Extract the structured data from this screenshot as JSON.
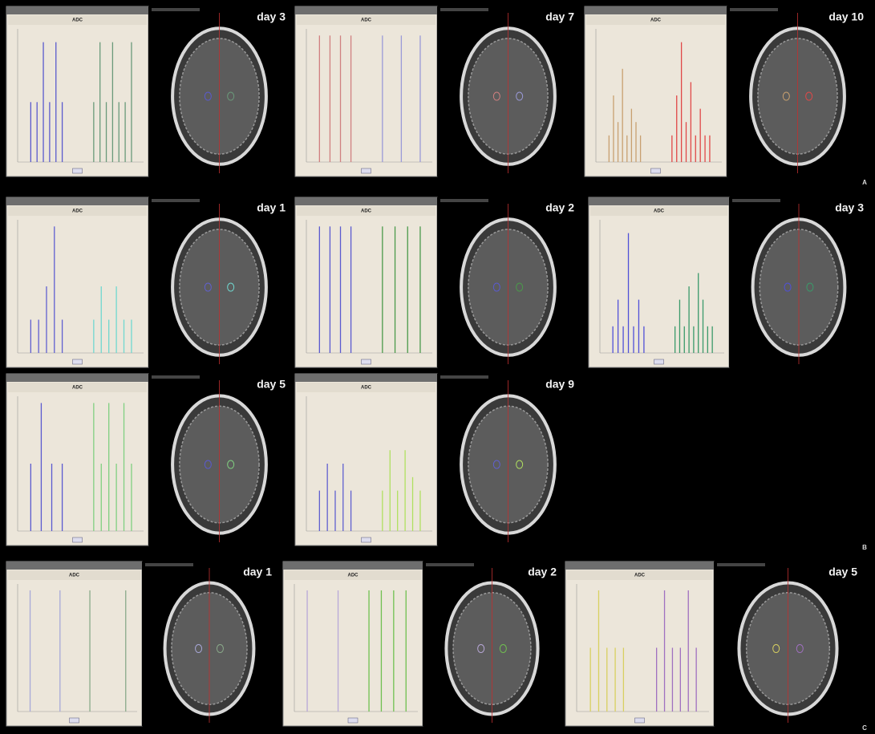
{
  "figure": {
    "panel_letters": [
      "A",
      "B",
      "C"
    ],
    "panels": [
      {
        "day": "day 3",
        "title": "ADC",
        "series": [
          {
            "color": "#5a5acd",
            "values": [
              0.45,
              0.45,
              0.9,
              0.45,
              0.9,
              0.45
            ]
          },
          {
            "color": "#6a9a7a",
            "values": [
              0.45,
              0.9,
              0.45,
              0.9,
              0.45,
              0.45,
              0.9
            ]
          }
        ]
      },
      {
        "day": "day 7",
        "title": "ADC",
        "series": [
          {
            "color": "#d08080",
            "values": [
              0.95,
              0.95,
              0.95,
              0.95
            ]
          },
          {
            "color": "#9a9ad8",
            "values": [
              0.95,
              0.95,
              0.95
            ]
          }
        ]
      },
      {
        "day": "day 10",
        "title": "ADC",
        "series": [
          {
            "color": "#c8a070",
            "values": [
              0.2,
              0.5,
              0.3,
              0.7,
              0.2,
              0.4,
              0.3,
              0.2
            ]
          },
          {
            "color": "#e04848",
            "values": [
              0.2,
              0.5,
              0.9,
              0.3,
              0.6,
              0.2,
              0.4,
              0.2,
              0.2
            ]
          }
        ]
      },
      {
        "day": "day 1",
        "title": "ADC",
        "series": [
          {
            "color": "#6060d0",
            "values": [
              0.25,
              0.25,
              0.5,
              0.95,
              0.25
            ]
          },
          {
            "color": "#70d8d0",
            "values": [
              0.25,
              0.5,
              0.25,
              0.5,
              0.25,
              0.25
            ]
          }
        ]
      },
      {
        "day": "day 2",
        "title": "ADC",
        "series": [
          {
            "color": "#5a5ad0",
            "values": [
              0.95,
              0.95,
              0.95,
              0.95
            ]
          },
          {
            "color": "#4a9a4a",
            "values": [
              0.95,
              0.95,
              0.95,
              0.95
            ]
          }
        ]
      },
      {
        "day": "day 3",
        "title": "ADC",
        "series": [
          {
            "color": "#5050d8",
            "values": [
              0.2,
              0.4,
              0.2,
              0.9,
              0.2,
              0.4,
              0.2
            ]
          },
          {
            "color": "#3a9a6a",
            "values": [
              0.2,
              0.4,
              0.2,
              0.5,
              0.2,
              0.6,
              0.4,
              0.2,
              0.2
            ]
          }
        ]
      },
      {
        "day": "day 5",
        "title": "ADC",
        "series": [
          {
            "color": "#5a5ad0",
            "values": [
              0.5,
              0.95,
              0.5,
              0.5
            ]
          },
          {
            "color": "#80d080",
            "values": [
              0.95,
              0.5,
              0.95,
              0.5,
              0.95,
              0.5
            ]
          }
        ]
      },
      {
        "day": "day 9",
        "title": "ADC",
        "series": [
          {
            "color": "#6060d0",
            "values": [
              0.3,
              0.5,
              0.3,
              0.5,
              0.3
            ]
          },
          {
            "color": "#b0e060",
            "values": [
              0.3,
              0.6,
              0.3,
              0.6,
              0.4,
              0.3
            ]
          }
        ]
      },
      {
        "day": "day 1",
        "title": "ADC",
        "series": [
          {
            "color": "#a8a8d8",
            "values": [
              0.95,
              0.95
            ]
          },
          {
            "color": "#8aaa8a",
            "values": [
              0.95,
              0.95
            ]
          }
        ]
      },
      {
        "day": "day 2",
        "title": "ADC",
        "series": [
          {
            "color": "#b8a8d8",
            "values": [
              0.95,
              0.95
            ]
          },
          {
            "color": "#70c050",
            "values": [
              0.95,
              0.95,
              0.95,
              0.95
            ]
          }
        ]
      },
      {
        "day": "day 5",
        "title": "ADC",
        "series": [
          {
            "color": "#d8d060",
            "values": [
              0.5,
              0.95,
              0.5,
              0.5,
              0.5
            ]
          },
          {
            "color": "#a070c0",
            "values": [
              0.5,
              0.95,
              0.5,
              0.5,
              0.95,
              0.5
            ]
          }
        ]
      }
    ]
  }
}
